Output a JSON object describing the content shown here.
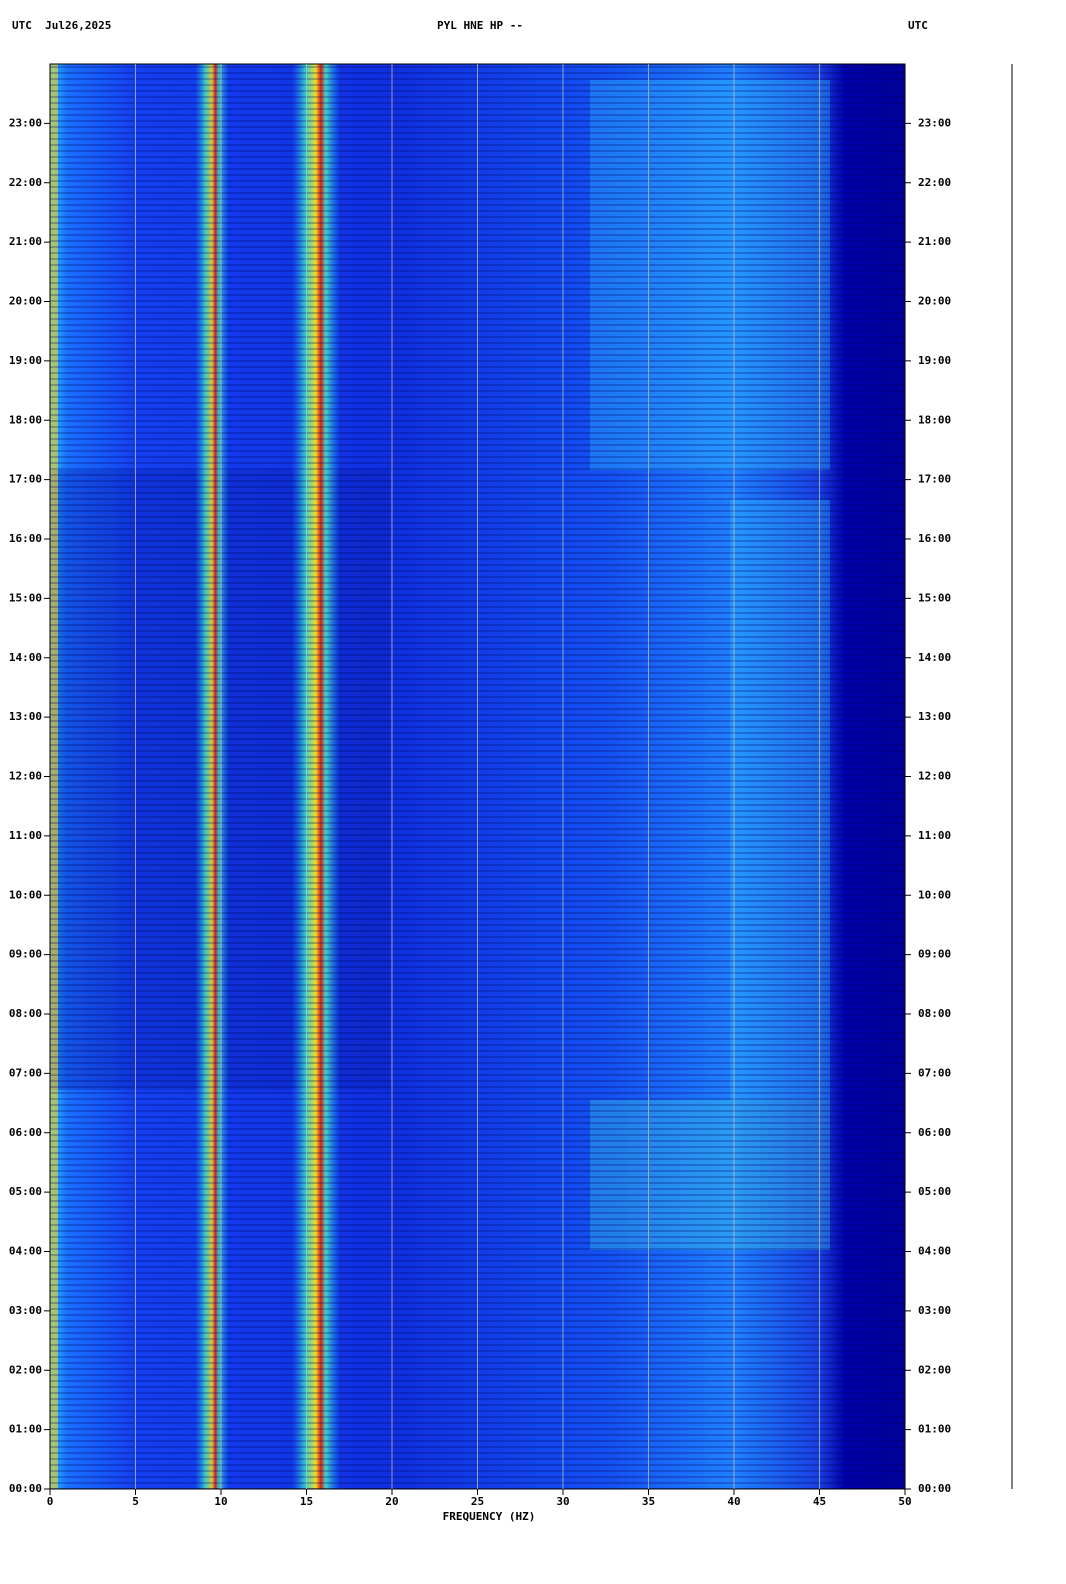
{
  "chart_data": {
    "type": "spectrogram",
    "header_left": "UTC  Jul26,2025",
    "title": "PYL HNE HP --",
    "header_right": "UTC",
    "xlabel": "FREQUENCY (HZ)",
    "xlim": [
      0,
      50
    ],
    "xticks": [
      0,
      5,
      10,
      15,
      20,
      25,
      30,
      35,
      40,
      45,
      50
    ],
    "ylim": [
      0,
      24
    ],
    "yticks": [
      {
        "value": 0,
        "label": "00:00"
      },
      {
        "value": 1,
        "label": "01:00"
      },
      {
        "value": 2,
        "label": "02:00"
      },
      {
        "value": 3,
        "label": "03:00"
      },
      {
        "value": 4,
        "label": "04:00"
      },
      {
        "value": 5,
        "label": "05:00"
      },
      {
        "value": 6,
        "label": "06:00"
      },
      {
        "value": 7,
        "label": "07:00"
      },
      {
        "value": 8,
        "label": "08:00"
      },
      {
        "value": 9,
        "label": "09:00"
      },
      {
        "value": 10,
        "label": "10:00"
      },
      {
        "value": 11,
        "label": "11:00"
      },
      {
        "value": 12,
        "label": "12:00"
      },
      {
        "value": 13,
        "label": "13:00"
      },
      {
        "value": 14,
        "label": "14:00"
      },
      {
        "value": 15,
        "label": "15:00"
      },
      {
        "value": 16,
        "label": "16:00"
      },
      {
        "value": 17,
        "label": "17:00"
      },
      {
        "value": 18,
        "label": "18:00"
      },
      {
        "value": 19,
        "label": "19:00"
      },
      {
        "value": 20,
        "label": "20:00"
      },
      {
        "value": 21,
        "label": "21:00"
      },
      {
        "value": 22,
        "label": "22:00"
      },
      {
        "value": 23,
        "label": "23:00"
      }
    ],
    "grid": "x"
  }
}
